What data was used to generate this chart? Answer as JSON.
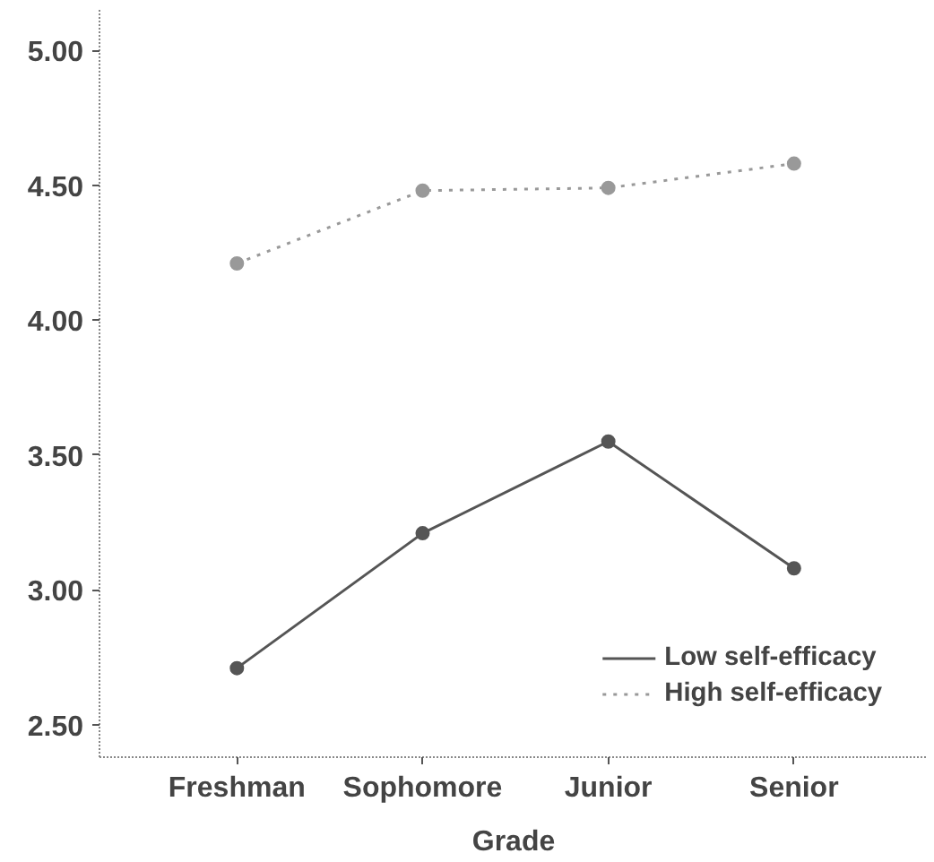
{
  "chart_data": {
    "type": "line",
    "xlabel": "Grade",
    "categories": [
      "Freshman",
      "Sophomore",
      "Junior",
      "Senior"
    ],
    "series": [
      {
        "name": "Low self-efficacy",
        "color": "#555555",
        "values": [
          2.71,
          3.21,
          3.55,
          3.08
        ],
        "line_style": "solid"
      },
      {
        "name": "High self-efficacy",
        "color": "#999999",
        "values": [
          4.21,
          4.48,
          4.49,
          4.58
        ],
        "line_style": "dotted"
      }
    ],
    "ylim": [
      2.38,
      5.15
    ],
    "yticks": [
      {
        "value": 2.5,
        "label": "2.50"
      },
      {
        "value": 3.0,
        "label": "3.00"
      },
      {
        "value": 3.5,
        "label": "3.50"
      },
      {
        "value": 4.0,
        "label": "4.00"
      },
      {
        "value": 4.5,
        "label": "4.50"
      },
      {
        "value": 5.0,
        "label": "5.00"
      }
    ],
    "grid": false,
    "legend": "bottom right",
    "marker": "circle"
  }
}
